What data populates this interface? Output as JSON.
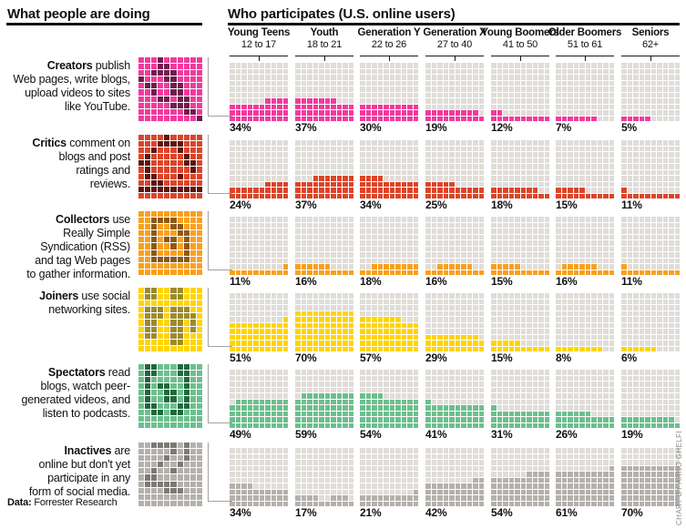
{
  "left_panel": {
    "title": "What people are doing"
  },
  "right_panel": {
    "title": "Who participates (U.S. online users)"
  },
  "columns": [
    {
      "id": "young-teens",
      "name": "Young Teens",
      "age": "12 to 17"
    },
    {
      "id": "youth",
      "name": "Youth",
      "age": "18 to 21"
    },
    {
      "id": "generation-y",
      "name": "Generation Y",
      "age": "22 to 26"
    },
    {
      "id": "generation-x",
      "name": "Generation X",
      "age": "27 to 40"
    },
    {
      "id": "young-boomers",
      "name": "Young Boomers",
      "age": "41 to 50"
    },
    {
      "id": "older-boomers",
      "name": "Older Boomers",
      "age": "51 to 61"
    },
    {
      "id": "seniors",
      "name": "Seniors",
      "age": "62+"
    }
  ],
  "empty_cell_color": "#e0ddd9",
  "rows": [
    {
      "id": "creators",
      "name": "Creators",
      "label_lines": [
        "publish",
        "Web pages, write blogs,",
        "upload videos to sites",
        "like YouTube."
      ],
      "color": "#f23a9d",
      "dark": "#6f1d4d",
      "bars": [
        {
          "v": 34,
          "s": 6
        },
        {
          "v": 37,
          "s": 0
        },
        {
          "v": 30,
          "s": 0
        },
        {
          "v": 19,
          "s": 0
        },
        {
          "v": 12,
          "s": 0
        },
        {
          "v": 7,
          "s": 0
        },
        {
          "v": 5,
          "s": 0
        }
      ],
      "icon_cells": [
        [
          3
        ],
        [
          3,
          4
        ],
        [
          2,
          3,
          4,
          5
        ],
        [
          0,
          4,
          5
        ],
        [
          1,
          2,
          5,
          6
        ],
        [
          2,
          5,
          6
        ],
        [
          3,
          4,
          6,
          7
        ],
        [
          5,
          6,
          7
        ],
        [
          7,
          8
        ],
        [
          9
        ]
      ]
    },
    {
      "id": "critics",
      "name": "Critics",
      "label_lines": [
        "comment on",
        "blogs and post",
        "ratings and",
        "reviews."
      ],
      "color": "#dc4428",
      "dark": "#5e150d",
      "bars": [
        {
          "v": 24,
          "s": 6
        },
        {
          "v": 37,
          "s": 3
        },
        {
          "v": 34,
          "s": 0
        },
        {
          "v": 25,
          "s": 0
        },
        {
          "v": 18,
          "s": 0
        },
        {
          "v": 15,
          "s": 0
        },
        {
          "v": 11,
          "s": 0
        }
      ],
      "icon_cells": [
        [
          4
        ],
        [
          3,
          4,
          5,
          6
        ],
        [
          2,
          6
        ],
        [
          1,
          7
        ],
        [
          0,
          1,
          7,
          8
        ],
        [
          1,
          8
        ],
        [
          1,
          2,
          6
        ],
        [
          2,
          3
        ],
        [
          0,
          1,
          2,
          3,
          4,
          5,
          6,
          7,
          8,
          9
        ],
        []
      ]
    },
    {
      "id": "collectors",
      "name": "Collectors",
      "label_lines": [
        "use",
        "Really Simple",
        "Syndication (RSS)",
        "and tag Web pages",
        "to gather information."
      ],
      "color": "#f9a01d",
      "dark": "#8d5912",
      "bars": [
        {
          "v": 11,
          "s": 9
        },
        {
          "v": 16,
          "s": 0
        },
        {
          "v": 18,
          "s": 2
        },
        {
          "v": 16,
          "s": 2
        },
        {
          "v": 15,
          "s": 0
        },
        {
          "v": 16,
          "s": 1
        },
        {
          "v": 11,
          "s": 0
        }
      ],
      "icon_cells": [
        [],
        [
          2,
          3,
          4,
          5
        ],
        [
          2,
          5,
          6
        ],
        [
          2,
          6,
          7
        ],
        [
          2,
          4,
          5,
          7
        ],
        [
          2,
          5,
          7
        ],
        [
          2,
          7
        ],
        [
          2,
          3,
          4,
          5,
          6,
          7
        ],
        [],
        []
      ]
    },
    {
      "id": "joiners",
      "name": "Joiners",
      "label_lines": [
        "use social",
        "networking sites."
      ],
      "color": "#ffd403",
      "dark": "#9c8b2b",
      "bars": [
        {
          "v": 51,
          "s": 9
        },
        {
          "v": 70,
          "s": 0
        },
        {
          "v": 57,
          "s": 0
        },
        {
          "v": 29,
          "s": 0
        },
        {
          "v": 15,
          "s": 0
        },
        {
          "v": 8,
          "s": 0
        },
        {
          "v": 6,
          "s": 0
        }
      ],
      "icon_cells": [
        [
          1,
          2,
          5,
          6
        ],
        [
          1,
          2,
          5,
          6
        ],
        [],
        [
          1,
          2,
          3,
          5,
          6,
          7
        ],
        [
          1,
          2,
          3,
          5,
          6,
          7,
          8
        ],
        [
          1,
          2,
          5,
          6,
          8
        ],
        [
          1,
          2,
          5,
          6,
          8
        ],
        [
          1,
          2,
          5,
          6
        ],
        [
          5,
          6
        ],
        []
      ]
    },
    {
      "id": "spectators",
      "name": "Spectators",
      "label_lines": [
        "read",
        "blogs, watch peer-",
        "generated videos, and",
        "listen to podcasts."
      ],
      "color": "#6cbf8d",
      "dark": "#1f693c",
      "bars": [
        {
          "v": 49,
          "s": 1
        },
        {
          "v": 59,
          "s": 1
        },
        {
          "v": 54,
          "s": 0
        },
        {
          "v": 41,
          "s": 0
        },
        {
          "v": 31,
          "s": 0
        },
        {
          "v": 26,
          "s": 0
        },
        {
          "v": 19,
          "s": 0
        }
      ],
      "icon_cells": [
        [
          1,
          2,
          6,
          7
        ],
        [
          1,
          2,
          6,
          7
        ],
        [
          1,
          7
        ],
        [
          1,
          3,
          4,
          7
        ],
        [
          1,
          4,
          5,
          7
        ],
        [
          1,
          4,
          5,
          7
        ],
        [
          1,
          2,
          6,
          7
        ],
        [
          2,
          3,
          5,
          6
        ],
        [],
        []
      ]
    },
    {
      "id": "inactives",
      "name": "Inactives",
      "label_lines": [
        "are",
        "online but don't yet",
        "participate in any",
        "form of social media."
      ],
      "color": "#b4b0ac",
      "dark": "#7d7974",
      "bars": [
        {
          "v": 34,
          "s": 0
        },
        {
          "v": 17,
          "cols": [
            0,
            1,
            2,
            3,
            6,
            7,
            8
          ]
        },
        {
          "v": 21,
          "s": 9
        },
        {
          "v": 42,
          "s": 8
        },
        {
          "v": 54,
          "s": 6
        },
        {
          "v": 61,
          "s": 9
        },
        {
          "v": 70,
          "s": 0
        }
      ],
      "icon_cells": [
        [
          2,
          3,
          4,
          5,
          7
        ],
        [
          5,
          7
        ],
        [
          4,
          7
        ],
        [
          3,
          6
        ],
        [
          2,
          5
        ],
        [
          1,
          2
        ],
        [
          1,
          2,
          3,
          4,
          5
        ],
        [
          4,
          5,
          6
        ],
        [],
        []
      ]
    }
  ],
  "source": {
    "bold": "Data:",
    "text": " Forrester Research"
  },
  "credit": "CHART BY ARNO GHELFI",
  "chart_data": {
    "type": "heatmap",
    "subtype": "waffle-bar-matrix",
    "title": "Who participates (U.S. online users)",
    "row_title": "What people are doing",
    "unit": "each grid is 10×10 cells; 1 cell = 1%",
    "categories": [
      "Young Teens 12 to 17",
      "Youth 18 to 21",
      "Generation Y 22 to 26",
      "Generation X 27 to 40",
      "Young Boomers 41 to 50",
      "Older Boomers 51 to 61",
      "Seniors 62+"
    ],
    "series": [
      {
        "name": "Creators",
        "values": [
          34,
          37,
          30,
          19,
          12,
          7,
          5
        ]
      },
      {
        "name": "Critics",
        "values": [
          24,
          37,
          34,
          25,
          18,
          15,
          11
        ]
      },
      {
        "name": "Collectors",
        "values": [
          11,
          16,
          18,
          16,
          15,
          16,
          11
        ]
      },
      {
        "name": "Joiners",
        "values": [
          51,
          70,
          57,
          29,
          15,
          8,
          6
        ]
      },
      {
        "name": "Spectators",
        "values": [
          49,
          59,
          54,
          41,
          31,
          26,
          19
        ]
      },
      {
        "name": "Inactives",
        "values": [
          34,
          17,
          21,
          42,
          54,
          61,
          70
        ]
      }
    ],
    "value_range": [
      0,
      100
    ],
    "source": "Forrester Research"
  }
}
